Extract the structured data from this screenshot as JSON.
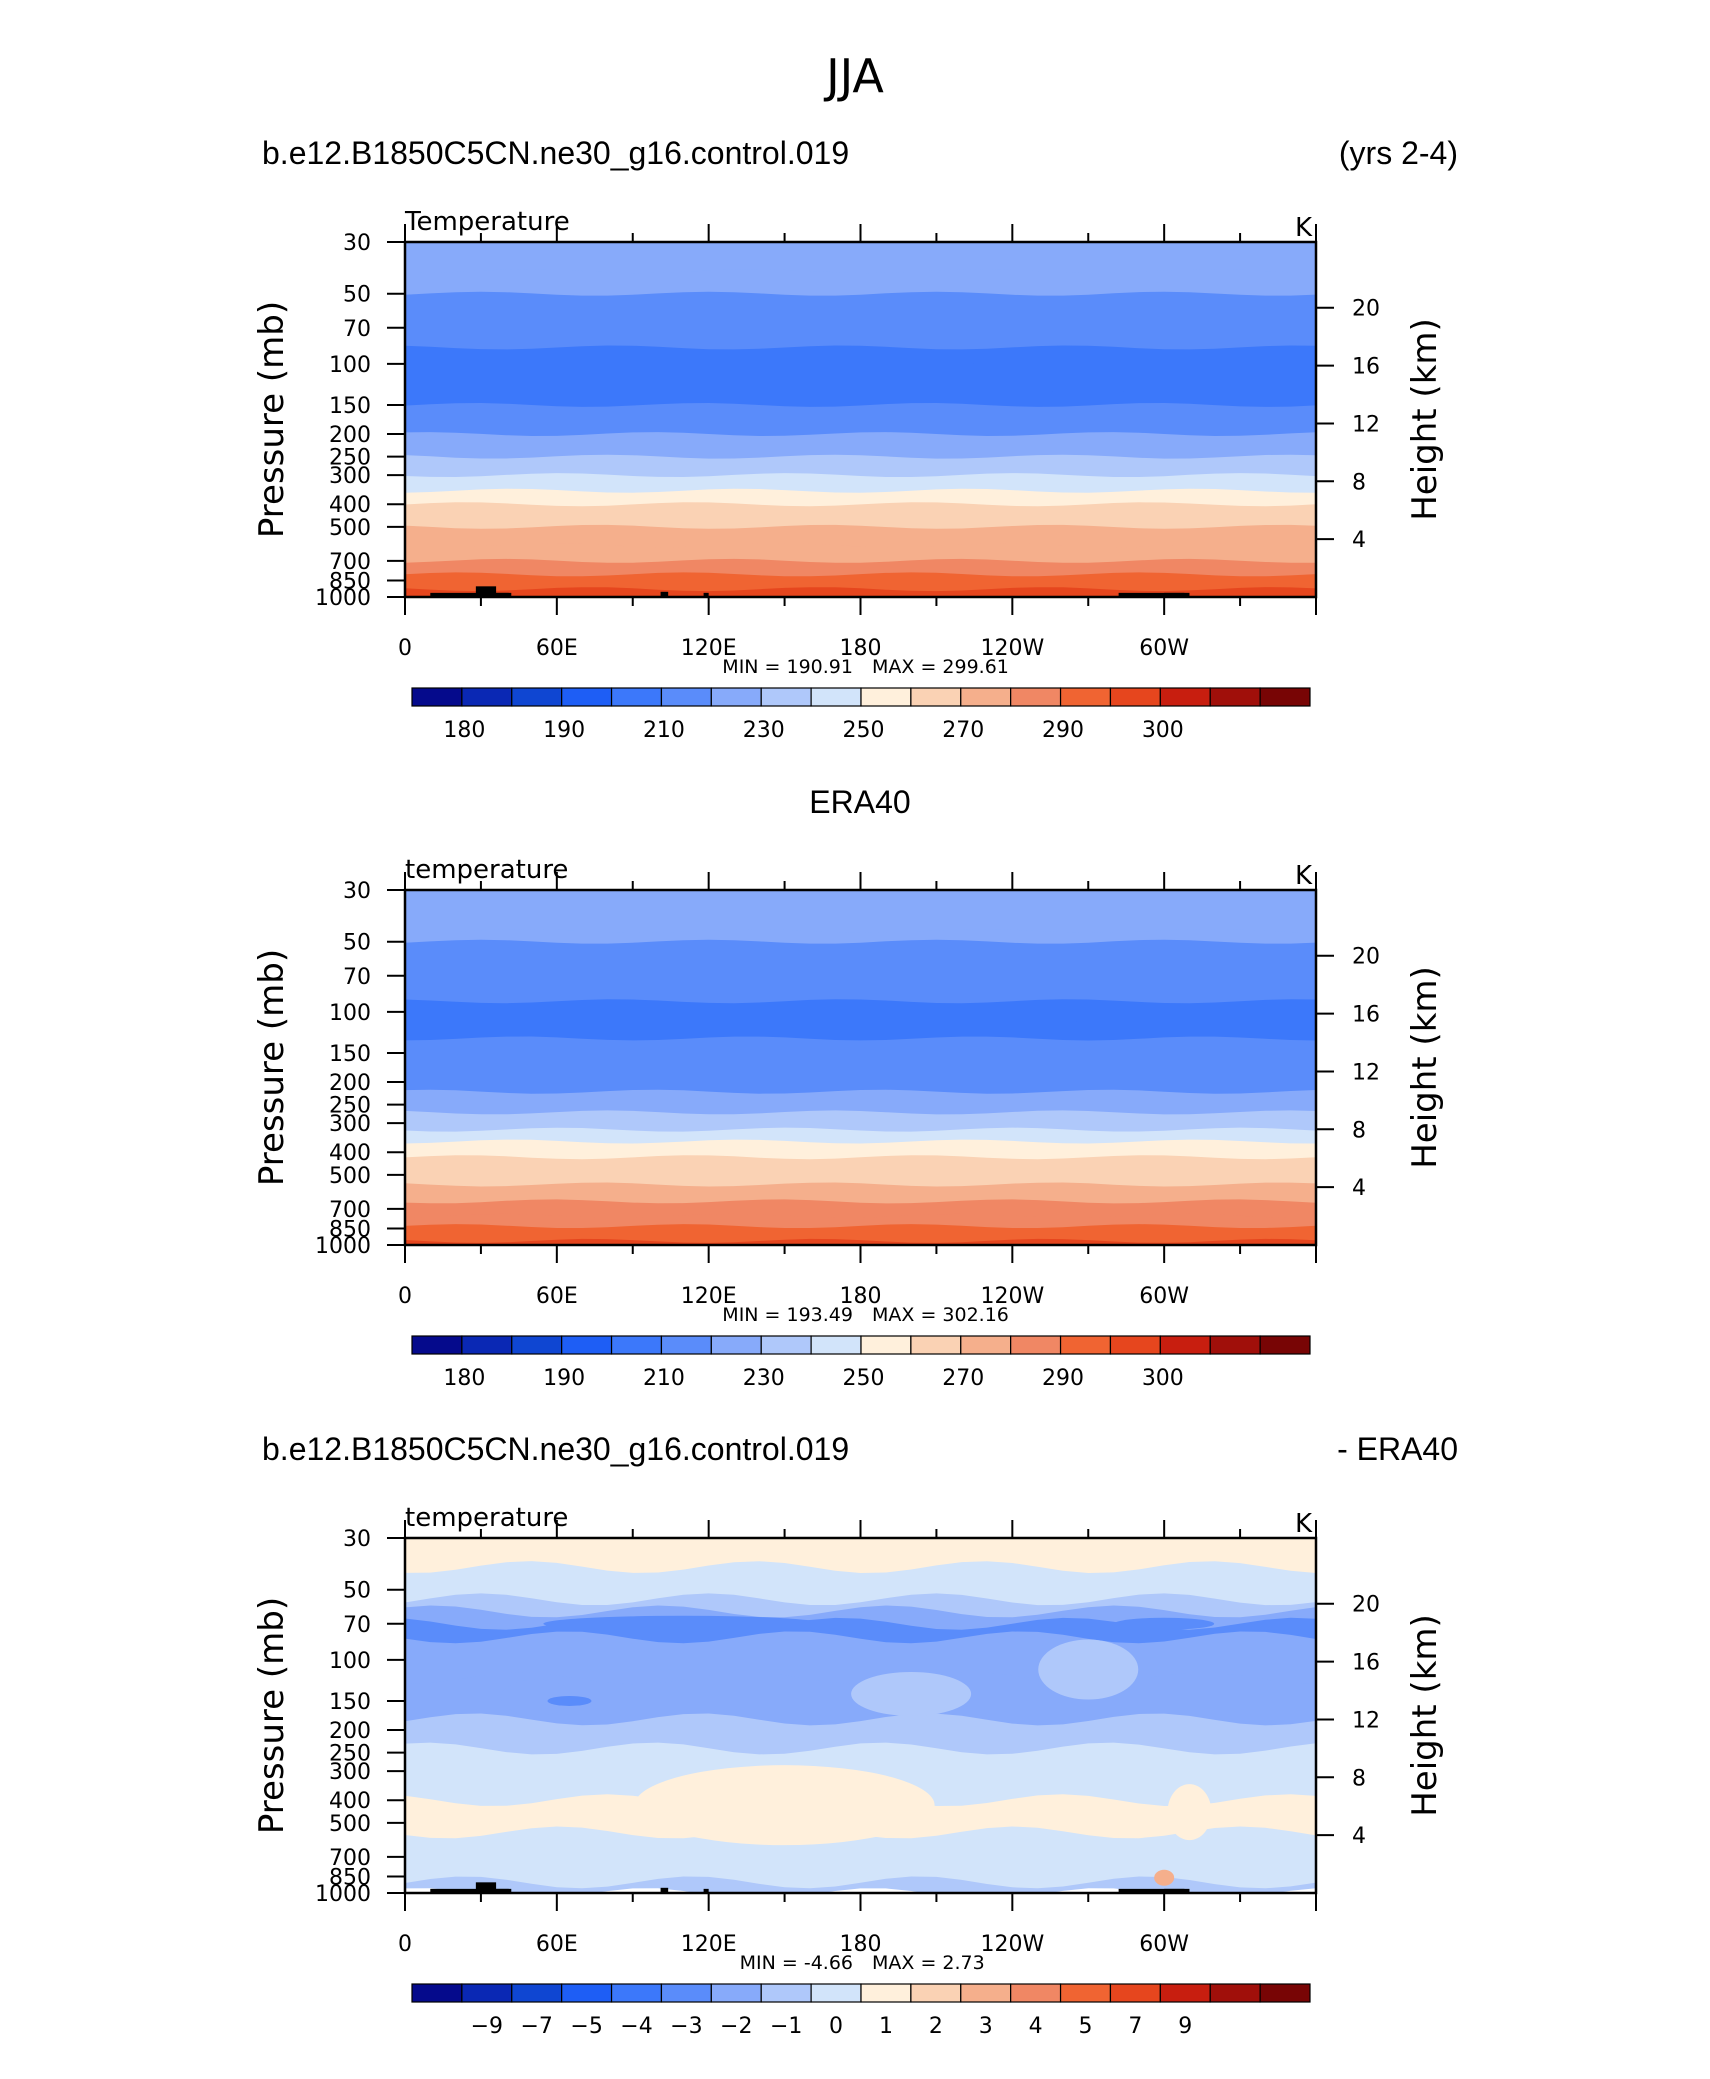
{
  "figure": {
    "title": "JJA",
    "top_left": "b.e12.B1850C5CN.ne30_g16.control.019",
    "top_right": "(yrs 2-4)",
    "mid_title": "ERA40",
    "bottom_left": "b.e12.B1850C5CN.ne30_g16.control.019",
    "bottom_right": "- ERA40"
  },
  "colors": {
    "temp_palette": [
      "#050a8c",
      "#0a28b4",
      "#0f46d2",
      "#1e5ef5",
      "#3c78fa",
      "#5a8cfa",
      "#87aafa",
      "#afc8fa",
      "#d2e4fa",
      "#fff0dc",
      "#fad2b4",
      "#f5af8c",
      "#f08764",
      "#f06432",
      "#e6461e",
      "#c81e0f",
      "#a00f0a",
      "#780505"
    ],
    "diff_palette": [
      "#050a8c",
      "#0a28b4",
      "#0f46d2",
      "#1e5ef5",
      "#3c78fa",
      "#5a8cfa",
      "#87aafa",
      "#afc8fa",
      "#d2e4fa",
      "#fff0dc",
      "#fad2b4",
      "#f5af8c",
      "#f08764",
      "#f06432",
      "#e6461e",
      "#c81e0f",
      "#a00f0a",
      "#780505"
    ]
  },
  "chart_data": [
    {
      "type": "heatmap",
      "variable_label": "Temperature",
      "units": "K",
      "ylabel": "Pressure  (mb)",
      "ylabel_right": "Height  (km)",
      "x_ticks": [
        "0",
        "60E",
        "120E",
        "180",
        "120W",
        "60W"
      ],
      "x_tick_lon": [
        0,
        60,
        120,
        180,
        240,
        300
      ],
      "y_ticks": [
        "30",
        "50",
        "70",
        "100",
        "150",
        "200",
        "250",
        "300",
        "400",
        "500",
        "700",
        "850",
        "1000"
      ],
      "y_tick_p": [
        30,
        50,
        70,
        100,
        150,
        200,
        250,
        300,
        400,
        500,
        700,
        850,
        1000
      ],
      "height_ticks": [
        "20",
        "16",
        "12",
        "8",
        "4"
      ],
      "height_km": [
        20,
        16,
        12,
        8,
        4
      ],
      "min_label": "MIN = 190.91",
      "max_label": "MAX = 299.61",
      "min": 190.91,
      "max": 299.61,
      "colorbar_labels": [
        "180",
        "190",
        "210",
        "230",
        "250",
        "270",
        "290",
        "300"
      ],
      "levels": [
        175,
        180,
        185,
        190,
        200,
        210,
        220,
        230,
        240,
        250,
        260,
        270,
        280,
        290,
        295,
        300,
        305
      ],
      "band_profile": [
        {
          "p": 30,
          "value": 218
        },
        {
          "p": 40,
          "value": 218
        },
        {
          "p": 50,
          "value": 207
        },
        {
          "p": 70,
          "value": 203
        },
        {
          "p": 85,
          "value": 195
        },
        {
          "p": 100,
          "value": 193
        },
        {
          "p": 130,
          "value": 196
        },
        {
          "p": 150,
          "value": 205
        },
        {
          "p": 200,
          "value": 216
        },
        {
          "p": 250,
          "value": 226
        },
        {
          "p": 300,
          "value": 238
        },
        {
          "p": 350,
          "value": 245
        },
        {
          "p": 400,
          "value": 252
        },
        {
          "p": 450,
          "value": 258
        },
        {
          "p": 500,
          "value": 263
        },
        {
          "p": 600,
          "value": 270
        },
        {
          "p": 700,
          "value": 276
        },
        {
          "p": 800,
          "value": 282
        },
        {
          "p": 850,
          "value": 286
        },
        {
          "p": 925,
          "value": 291
        },
        {
          "p": 1000,
          "value": 297
        }
      ],
      "topography": true
    },
    {
      "type": "heatmap",
      "variable_label": "temperature",
      "units": "K",
      "ylabel": "Pressure  (mb)",
      "ylabel_right": "Height  (km)",
      "x_ticks": [
        "0",
        "60E",
        "120E",
        "180",
        "120W",
        "60W"
      ],
      "x_tick_lon": [
        0,
        60,
        120,
        180,
        240,
        300
      ],
      "y_ticks": [
        "30",
        "50",
        "70",
        "100",
        "150",
        "200",
        "250",
        "300",
        "400",
        "500",
        "700",
        "850",
        "1000"
      ],
      "y_tick_p": [
        30,
        50,
        70,
        100,
        150,
        200,
        250,
        300,
        400,
        500,
        700,
        850,
        1000
      ],
      "height_ticks": [
        "20",
        "16",
        "12",
        "8",
        "4"
      ],
      "height_km": [
        20,
        16,
        12,
        8,
        4
      ],
      "min_label": "MIN = 193.49",
      "max_label": "MAX = 302.16",
      "min": 193.49,
      "max": 302.16,
      "colorbar_labels": [
        "180",
        "190",
        "210",
        "230",
        "250",
        "270",
        "290",
        "300"
      ],
      "levels": [
        175,
        180,
        185,
        190,
        200,
        210,
        220,
        230,
        240,
        250,
        260,
        270,
        280,
        290,
        295,
        300,
        305
      ],
      "band_profile": [
        {
          "p": 30,
          "value": 218
        },
        {
          "p": 45,
          "value": 215
        },
        {
          "p": 50,
          "value": 207
        },
        {
          "p": 75,
          "value": 203
        },
        {
          "p": 90,
          "value": 195
        },
        {
          "p": 110,
          "value": 195
        },
        {
          "p": 130,
          "value": 203
        },
        {
          "p": 170,
          "value": 206
        },
        {
          "p": 220,
          "value": 218
        },
        {
          "p": 270,
          "value": 226
        },
        {
          "p": 320,
          "value": 237
        },
        {
          "p": 360,
          "value": 245
        },
        {
          "p": 420,
          "value": 252
        },
        {
          "p": 480,
          "value": 258
        },
        {
          "p": 550,
          "value": 265
        },
        {
          "p": 650,
          "value": 272
        },
        {
          "p": 750,
          "value": 278
        },
        {
          "p": 830,
          "value": 284
        },
        {
          "p": 900,
          "value": 289
        },
        {
          "p": 960,
          "value": 293
        },
        {
          "p": 1000,
          "value": 299
        }
      ],
      "topography": false
    },
    {
      "type": "heatmap",
      "variable_label": "temperature",
      "units": "K",
      "ylabel": "Pressure  (mb)",
      "ylabel_right": "Height  (km)",
      "x_ticks": [
        "0",
        "60E",
        "120E",
        "180",
        "120W",
        "60W"
      ],
      "x_tick_lon": [
        0,
        60,
        120,
        180,
        240,
        300
      ],
      "y_ticks": [
        "30",
        "50",
        "70",
        "100",
        "150",
        "200",
        "250",
        "300",
        "400",
        "500",
        "700",
        "850",
        "1000"
      ],
      "y_tick_p": [
        30,
        50,
        70,
        100,
        150,
        200,
        250,
        300,
        400,
        500,
        700,
        850,
        1000
      ],
      "height_ticks": [
        "20",
        "16",
        "12",
        "8",
        "4"
      ],
      "height_km": [
        20,
        16,
        12,
        8,
        4
      ],
      "min_label": "MIN = -4.66",
      "max_label": "MAX = 2.73",
      "min": -4.66,
      "max": 2.73,
      "colorbar_labels": [
        "−9",
        "−7",
        "−5",
        "−4",
        "−3",
        "−2",
        "−1",
        "0",
        "1",
        "2",
        "3",
        "4",
        "5",
        "7",
        "9"
      ],
      "levels": [
        -9,
        -8,
        -7,
        -6,
        -5,
        -4,
        -3,
        -2,
        -1,
        0,
        1,
        2,
        3,
        4,
        5,
        6,
        7,
        8,
        9
      ],
      "band_profile": [
        {
          "p": 30,
          "value": -0.5
        },
        {
          "p": 40,
          "value": -1.5
        },
        {
          "p": 55,
          "value": -2.5
        },
        {
          "p": 62,
          "value": -3.5
        },
        {
          "p": 70,
          "value": -4.5
        },
        {
          "p": 80,
          "value": -3.5
        },
        {
          "p": 120,
          "value": -3.5
        },
        {
          "p": 180,
          "value": -2.5
        },
        {
          "p": 240,
          "value": -1.5
        },
        {
          "p": 400,
          "value": -0.5
        },
        {
          "p": 550,
          "value": -1.5
        },
        {
          "p": 800,
          "value": -1.5
        },
        {
          "p": 900,
          "value": -2.5
        },
        {
          "p": 1000,
          "value": -1.5
        }
      ],
      "topography": true
    }
  ]
}
